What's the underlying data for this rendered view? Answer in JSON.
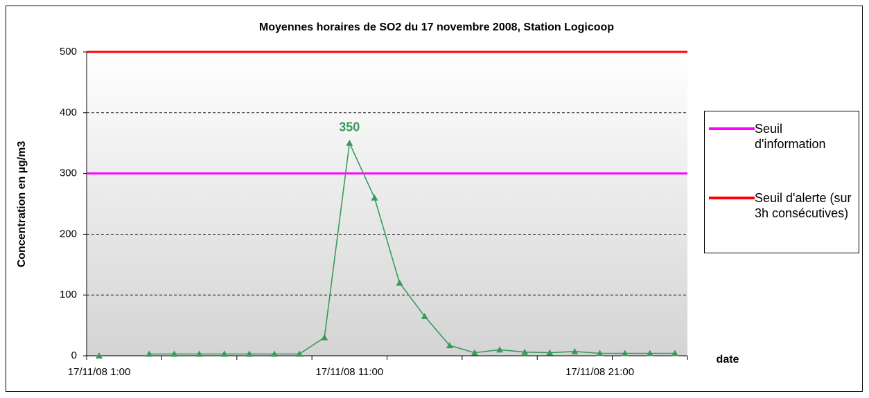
{
  "chart_data": {
    "type": "line",
    "title": "Moyennes horaires de SO2 du 17 novembre 2008, Station Logicoop",
    "y_label": "Concentration en µg/m3",
    "x_label": "date",
    "x": [
      1,
      2,
      3,
      4,
      5,
      6,
      7,
      8,
      9,
      10,
      11,
      12,
      13,
      14,
      15,
      16,
      17,
      18,
      19,
      20,
      21,
      22,
      23,
      24
    ],
    "series": [
      {
        "color": "#3a9a5c",
        "values": [
          0,
          null,
          3,
          3,
          3,
          3,
          3,
          3,
          3,
          30,
          350,
          260,
          120,
          65,
          17,
          5,
          10,
          6,
          5,
          7,
          4,
          4,
          4,
          4
        ]
      }
    ],
    "data_label_indices": [
      10
    ],
    "thresholds": [
      {
        "name": "Seuil d'information",
        "color": "#ff00ff",
        "value": 300
      },
      {
        "name": "Seuil d'alerte (sur 3h consécutives)",
        "color": "#ff0000",
        "value": 500
      }
    ],
    "xlim": [
      0.5,
      24.5
    ],
    "xticks": [
      {
        "value": 1,
        "label": "17/11/08 1:00"
      },
      {
        "value": 11,
        "label": "17/11/08 11:00"
      },
      {
        "value": 21,
        "label": "17/11/08 21:00"
      }
    ],
    "x_tick_marks": [
      0.5,
      3.5,
      6.5,
      9.5,
      12.5,
      15.5,
      18.5,
      21.5,
      24.5
    ],
    "ylim": [
      0,
      500
    ],
    "yticks": [
      0,
      100,
      200,
      300,
      400,
      500
    ],
    "grid": true,
    "legend": "right"
  }
}
